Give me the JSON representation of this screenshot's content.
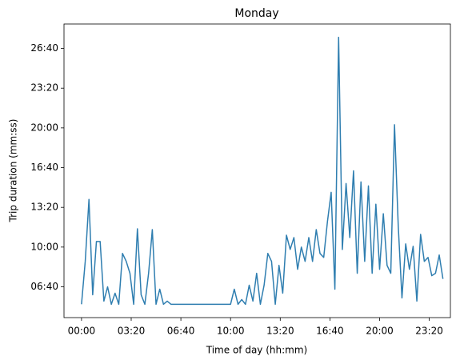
{
  "chart_data": {
    "type": "line",
    "title": "Monday",
    "xlabel": "Time of day (hh:mm)",
    "ylabel": "Trip duration (mm:ss)",
    "color": "#2f7eb0",
    "grid": false,
    "xlim": [
      -4230,
      89100
    ],
    "ylim": [
      245,
      1723
    ],
    "xticks": [
      {
        "value": 0,
        "label": "00:00"
      },
      {
        "value": 12000,
        "label": "03:20"
      },
      {
        "value": 24000,
        "label": "06:40"
      },
      {
        "value": 36000,
        "label": "10:00"
      },
      {
        "value": 48000,
        "label": "13:20"
      },
      {
        "value": 60000,
        "label": "16:40"
      },
      {
        "value": 72000,
        "label": "20:00"
      },
      {
        "value": 84000,
        "label": "23:20"
      }
    ],
    "yticks": [
      {
        "value": 400,
        "label": "06:40"
      },
      {
        "value": 600,
        "label": "10:00"
      },
      {
        "value": 800,
        "label": "13:20"
      },
      {
        "value": 1000,
        "label": "16:40"
      },
      {
        "value": 1200,
        "label": "20:00"
      },
      {
        "value": 1400,
        "label": "23:20"
      },
      {
        "value": 1600,
        "label": "26:40"
      }
    ],
    "x": [
      0,
      900,
      1800,
      2700,
      3600,
      4500,
      5400,
      6300,
      7200,
      8100,
      9000,
      9900,
      10800,
      11700,
      12600,
      13500,
      14400,
      15300,
      16200,
      17100,
      18000,
      18900,
      19800,
      20700,
      21600,
      22500,
      23400,
      24300,
      25200,
      26100,
      27000,
      27900,
      28800,
      29700,
      30600,
      31500,
      32400,
      33300,
      34200,
      35100,
      36000,
      36900,
      37800,
      38700,
      39600,
      40500,
      41400,
      42300,
      43200,
      44100,
      45000,
      45900,
      46800,
      47700,
      48600,
      49500,
      50400,
      51300,
      52200,
      53100,
      54000,
      54900,
      55800,
      56700,
      57600,
      58500,
      59400,
      60300,
      61200,
      62100,
      63000,
      63900,
      64800,
      65700,
      66600,
      67500,
      68400,
      69300,
      70200,
      71100,
      72000,
      72900,
      73800,
      74700,
      75600,
      76500,
      77400,
      78300,
      79200,
      80100,
      81000,
      81900,
      82800,
      83700,
      84600,
      85500,
      86400,
      87300
    ],
    "values": [
      312,
      528,
      840,
      360,
      628,
      628,
      328,
      400,
      312,
      368,
      312,
      568,
      528,
      468,
      312,
      692,
      360,
      312,
      468,
      688,
      312,
      388,
      312,
      328,
      312,
      312,
      312,
      312,
      312,
      312,
      312,
      312,
      312,
      312,
      312,
      312,
      312,
      312,
      312,
      312,
      312,
      388,
      312,
      336,
      312,
      408,
      328,
      468,
      312,
      408,
      568,
      528,
      312,
      508,
      368,
      660,
      588,
      648,
      488,
      600,
      528,
      648,
      528,
      688,
      568,
      548,
      728,
      876,
      388,
      1656,
      588,
      920,
      648,
      984,
      468,
      928,
      528,
      908,
      468,
      816,
      488,
      768,
      508,
      468,
      1216,
      708,
      344,
      616,
      488,
      604,
      328,
      664,
      528,
      548,
      456,
      468,
      560,
      440
    ]
  }
}
